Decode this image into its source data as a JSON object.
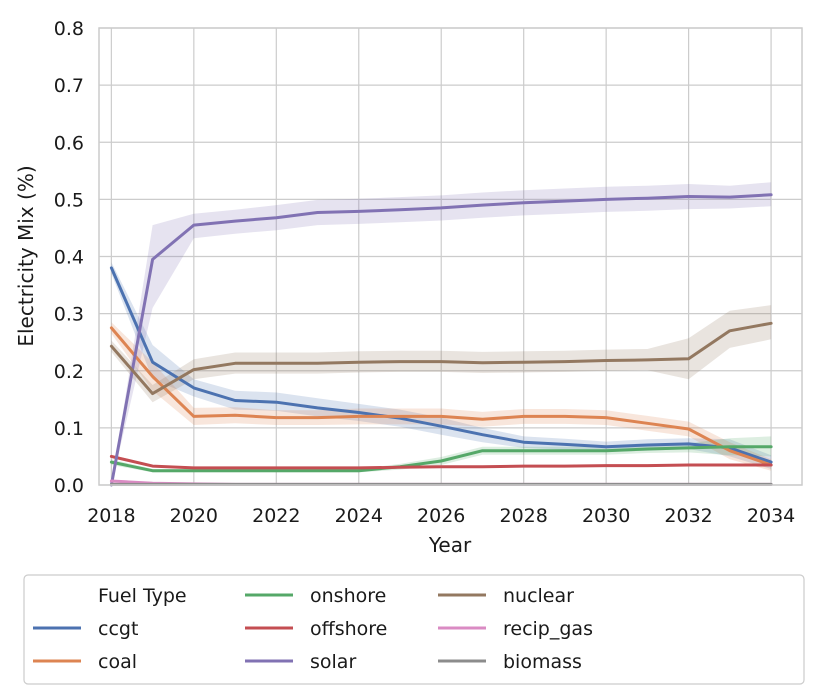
{
  "chart_data": {
    "type": "line",
    "title": "",
    "xlabel": "Year",
    "ylabel": "Electricity Mix (%)",
    "xlim": [
      2017.7,
      2034.75
    ],
    "ylim": [
      0,
      0.8
    ],
    "xticks": [
      "2018",
      "2020",
      "2022",
      "2024",
      "2026",
      "2028",
      "2030",
      "2032",
      "2034"
    ],
    "yticks": [
      "0.0",
      "0.1",
      "0.2",
      "0.3",
      "0.4",
      "0.5",
      "0.6",
      "0.7",
      "0.8"
    ],
    "grid": true,
    "legend_title": "Fuel Type",
    "legend_position": "below",
    "x": [
      2018,
      2019,
      2020,
      2021,
      2022,
      2023,
      2024,
      2025,
      2026,
      2027,
      2028,
      2029,
      2030,
      2031,
      2032,
      2033,
      2034
    ],
    "series": [
      {
        "name": "ccgt",
        "color": "#4c72b0",
        "values": [
          0.38,
          0.215,
          0.17,
          0.148,
          0.145,
          0.135,
          0.127,
          0.117,
          0.103,
          0.088,
          0.075,
          0.071,
          0.067,
          0.07,
          0.072,
          0.065,
          0.04
        ],
        "lower": [
          0.37,
          0.185,
          0.155,
          0.132,
          0.13,
          0.12,
          0.112,
          0.102,
          0.088,
          0.075,
          0.065,
          0.062,
          0.058,
          0.06,
          0.063,
          0.05,
          0.028
        ],
        "upper": [
          0.39,
          0.245,
          0.185,
          0.165,
          0.162,
          0.152,
          0.142,
          0.132,
          0.118,
          0.1,
          0.085,
          0.081,
          0.076,
          0.08,
          0.082,
          0.08,
          0.052
        ]
      },
      {
        "name": "coal",
        "color": "#dd8452",
        "values": [
          0.275,
          0.19,
          0.12,
          0.122,
          0.118,
          0.118,
          0.12,
          0.12,
          0.12,
          0.115,
          0.12,
          0.12,
          0.118,
          0.108,
          0.098,
          0.06,
          0.035
        ],
        "lower": [
          0.265,
          0.165,
          0.105,
          0.108,
          0.105,
          0.105,
          0.106,
          0.106,
          0.106,
          0.102,
          0.107,
          0.107,
          0.105,
          0.095,
          0.085,
          0.045,
          0.025
        ],
        "upper": [
          0.285,
          0.215,
          0.135,
          0.136,
          0.131,
          0.131,
          0.134,
          0.134,
          0.134,
          0.128,
          0.133,
          0.133,
          0.131,
          0.121,
          0.111,
          0.075,
          0.045
        ]
      },
      {
        "name": "onshore",
        "color": "#55a868",
        "values": [
          0.04,
          0.025,
          0.025,
          0.025,
          0.025,
          0.025,
          0.025,
          0.032,
          0.042,
          0.06,
          0.06,
          0.06,
          0.06,
          0.063,
          0.065,
          0.067,
          0.067
        ],
        "lower": [
          0.035,
          0.022,
          0.022,
          0.022,
          0.022,
          0.022,
          0.022,
          0.027,
          0.035,
          0.053,
          0.053,
          0.053,
          0.053,
          0.056,
          0.057,
          0.052,
          0.05
        ],
        "upper": [
          0.045,
          0.028,
          0.028,
          0.028,
          0.028,
          0.028,
          0.028,
          0.037,
          0.049,
          0.067,
          0.067,
          0.067,
          0.067,
          0.07,
          0.073,
          0.082,
          0.085
        ]
      },
      {
        "name": "offshore",
        "color": "#c44e52",
        "values": [
          0.05,
          0.033,
          0.03,
          0.03,
          0.03,
          0.03,
          0.03,
          0.031,
          0.032,
          0.032,
          0.033,
          0.033,
          0.034,
          0.034,
          0.035,
          0.035,
          0.035
        ],
        "lower": [
          0.047,
          0.031,
          0.028,
          0.028,
          0.028,
          0.028,
          0.028,
          0.029,
          0.03,
          0.03,
          0.031,
          0.031,
          0.032,
          0.032,
          0.033,
          0.033,
          0.033
        ],
        "upper": [
          0.053,
          0.035,
          0.032,
          0.032,
          0.032,
          0.032,
          0.032,
          0.033,
          0.034,
          0.034,
          0.035,
          0.035,
          0.036,
          0.036,
          0.037,
          0.037,
          0.037
        ]
      },
      {
        "name": "solar",
        "color": "#8172b3",
        "values": [
          0.0,
          0.395,
          0.455,
          0.462,
          0.468,
          0.477,
          0.479,
          0.482,
          0.485,
          0.49,
          0.494,
          0.497,
          0.5,
          0.502,
          0.505,
          0.504,
          0.508
        ],
        "lower": [
          0.0,
          0.31,
          0.432,
          0.44,
          0.446,
          0.455,
          0.457,
          0.46,
          0.463,
          0.468,
          0.472,
          0.475,
          0.478,
          0.48,
          0.483,
          0.484,
          0.488
        ],
        "upper": [
          0.0,
          0.455,
          0.475,
          0.482,
          0.49,
          0.499,
          0.501,
          0.504,
          0.507,
          0.512,
          0.516,
          0.519,
          0.522,
          0.524,
          0.527,
          0.524,
          0.53
        ]
      },
      {
        "name": "nuclear",
        "color": "#937860",
        "values": [
          0.243,
          0.16,
          0.202,
          0.213,
          0.213,
          0.213,
          0.215,
          0.216,
          0.216,
          0.214,
          0.215,
          0.216,
          0.218,
          0.219,
          0.221,
          0.27,
          0.283
        ],
        "lower": [
          0.233,
          0.145,
          0.185,
          0.195,
          0.195,
          0.195,
          0.197,
          0.198,
          0.198,
          0.196,
          0.197,
          0.198,
          0.2,
          0.201,
          0.185,
          0.24,
          0.255
        ],
        "upper": [
          0.253,
          0.175,
          0.22,
          0.232,
          0.232,
          0.232,
          0.234,
          0.235,
          0.235,
          0.233,
          0.234,
          0.235,
          0.237,
          0.238,
          0.257,
          0.305,
          0.315
        ]
      },
      {
        "name": "recip_gas",
        "color": "#da8bc3",
        "values": [
          0.007,
          0.003,
          0.002,
          0.001,
          0.001,
          0.001,
          0.001,
          0.001,
          0.001,
          0.001,
          0.001,
          0.001,
          0.001,
          0.001,
          0.001,
          0.001,
          0.001
        ],
        "lower": [
          0.005,
          0.002,
          0.001,
          0.0,
          0.0,
          0.0,
          0.0,
          0.0,
          0.0,
          0.0,
          0.0,
          0.0,
          0.0,
          0.0,
          0.0,
          0.0,
          0.0
        ],
        "upper": [
          0.009,
          0.004,
          0.003,
          0.002,
          0.002,
          0.002,
          0.002,
          0.002,
          0.002,
          0.002,
          0.002,
          0.002,
          0.002,
          0.002,
          0.002,
          0.002,
          0.002
        ]
      },
      {
        "name": "biomass",
        "color": "#8c8c8c",
        "values": [
          0.001,
          0.001,
          0.001,
          0.001,
          0.001,
          0.001,
          0.001,
          0.001,
          0.001,
          0.001,
          0.001,
          0.001,
          0.001,
          0.001,
          0.001,
          0.001,
          0.001
        ],
        "lower": [
          0.0,
          0.0,
          0.0,
          0.0,
          0.0,
          0.0,
          0.0,
          0.0,
          0.0,
          0.0,
          0.0,
          0.0,
          0.0,
          0.0,
          0.0,
          0.0,
          0.0
        ],
        "upper": [
          0.002,
          0.002,
          0.002,
          0.002,
          0.002,
          0.002,
          0.002,
          0.002,
          0.002,
          0.002,
          0.002,
          0.002,
          0.002,
          0.002,
          0.002,
          0.002,
          0.002
        ]
      }
    ]
  }
}
